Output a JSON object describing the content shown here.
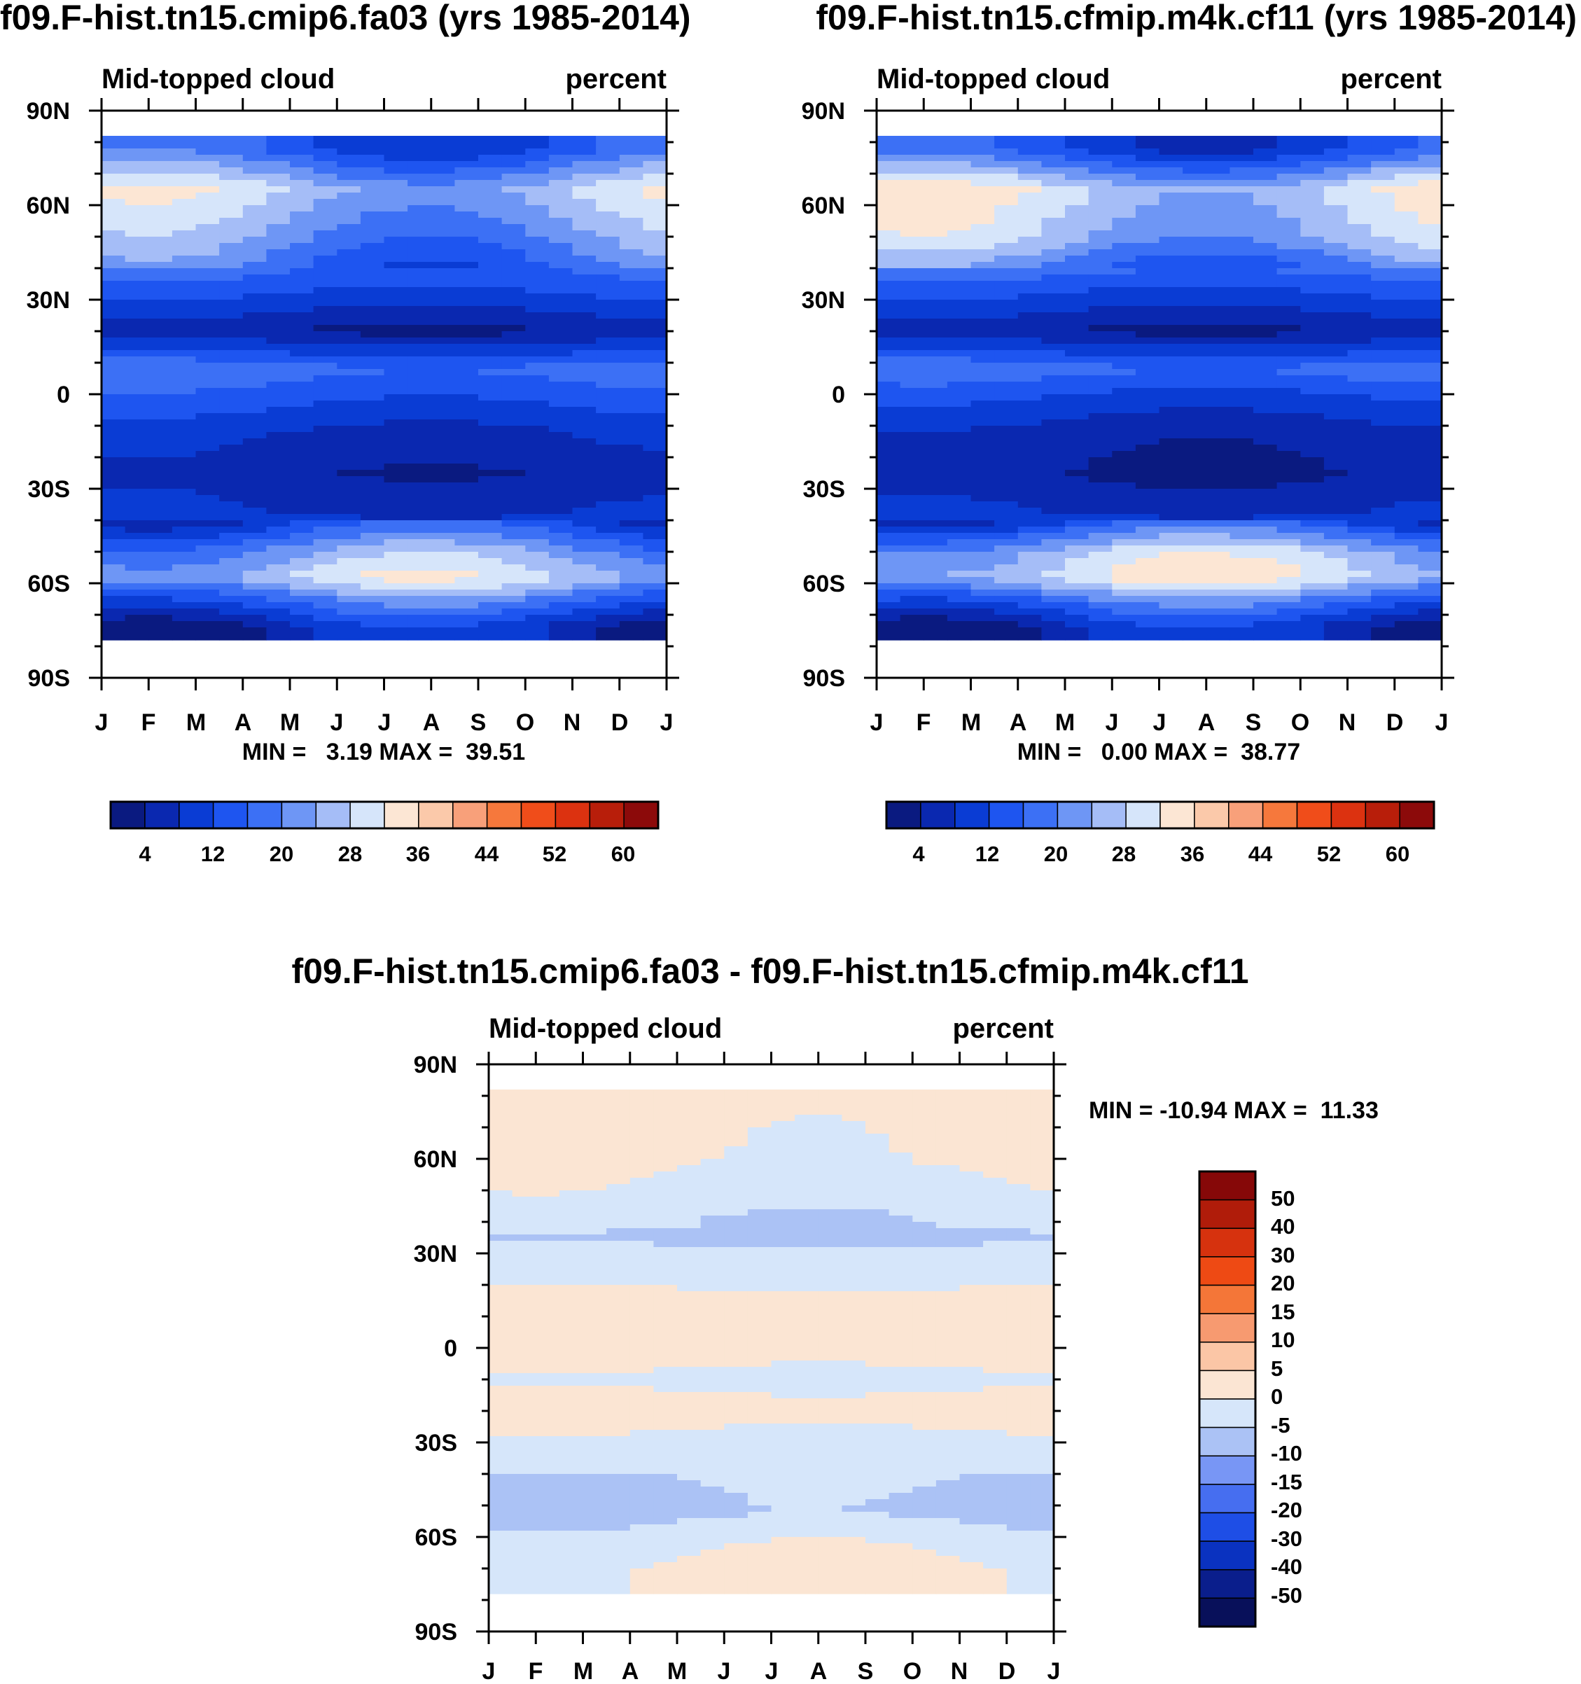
{
  "chart_data": [
    {
      "type": "heatmap",
      "title": "f09.F-hist.tn15.cmip6.fa03 (yrs 1985-2014)",
      "subtitle_left": "Mid-topped cloud",
      "subtitle_right": "percent",
      "x_ticks": [
        "J",
        "F",
        "M",
        "A",
        "M",
        "J",
        "J",
        "A",
        "S",
        "O",
        "N",
        "D",
        "J"
      ],
      "y_ticks": [
        "90N",
        "60N",
        "30N",
        "0",
        "30S",
        "60S",
        "90S"
      ],
      "ylim": [
        -90,
        90
      ],
      "stats": "MIN =   3.19 MAX =  39.51",
      "min": 3.19,
      "max": 39.51,
      "colorbar_labels": [
        "4",
        "12",
        "20",
        "28",
        "36",
        "44",
        "52",
        "60"
      ],
      "zonal_profile": [
        [
          78,
          14
        ],
        [
          65,
          28
        ],
        [
          50,
          22
        ],
        [
          35,
          14
        ],
        [
          20,
          4
        ],
        [
          8,
          18
        ],
        [
          0,
          14
        ],
        [
          -12,
          8
        ],
        [
          -25,
          5
        ],
        [
          -38,
          8
        ],
        [
          -50,
          22
        ],
        [
          -58,
          28
        ],
        [
          -66,
          16
        ],
        [
          -74,
          6
        ]
      ]
    },
    {
      "type": "heatmap",
      "title": "f09.F-hist.tn15.cfmip.m4k.cf11 (yrs 1985-2014)",
      "subtitle_left": "Mid-topped cloud",
      "subtitle_right": "percent",
      "x_ticks": [
        "J",
        "F",
        "M",
        "A",
        "M",
        "J",
        "J",
        "A",
        "S",
        "O",
        "N",
        "D",
        "J"
      ],
      "y_ticks": [
        "90N",
        "60N",
        "30N",
        "0",
        "30S",
        "60S",
        "90S"
      ],
      "ylim": [
        -90,
        90
      ],
      "stats": "MIN =   0.00 MAX =  38.77",
      "min": 0.0,
      "max": 38.77,
      "colorbar_labels": [
        "4",
        "12",
        "20",
        "28",
        "36",
        "44",
        "52",
        "60"
      ],
      "zonal_profile": [
        [
          78,
          12
        ],
        [
          65,
          30
        ],
        [
          50,
          26
        ],
        [
          35,
          14
        ],
        [
          20,
          4
        ],
        [
          8,
          18
        ],
        [
          0,
          12
        ],
        [
          -12,
          6
        ],
        [
          -25,
          4
        ],
        [
          -38,
          8
        ],
        [
          -50,
          26
        ],
        [
          -58,
          30
        ],
        [
          -66,
          16
        ],
        [
          -74,
          6
        ]
      ]
    },
    {
      "type": "heatmap",
      "title": "f09.F-hist.tn15.cmip6.fa03 - f09.F-hist.tn15.cfmip.m4k.cf11",
      "subtitle_left": "Mid-topped cloud",
      "subtitle_right": "percent",
      "x_ticks": [
        "J",
        "F",
        "M",
        "A",
        "M",
        "J",
        "J",
        "A",
        "S",
        "O",
        "N",
        "D",
        "J"
      ],
      "y_ticks": [
        "90N",
        "60N",
        "30N",
        "0",
        "30S",
        "60S",
        "90S"
      ],
      "ylim": [
        -90,
        90
      ],
      "stats": "MIN = -10.94 MAX =  11.33",
      "min": -10.94,
      "max": 11.33,
      "colorbar_labels": [
        "50",
        "40",
        "30",
        "20",
        "15",
        "10",
        "5",
        "0",
        "-5",
        "-10",
        "-15",
        "-20",
        "-30",
        "-40",
        "-50"
      ],
      "zonal_profile": [
        [
          75,
          2
        ],
        [
          60,
          1
        ],
        [
          45,
          -3
        ],
        [
          35,
          -6
        ],
        [
          25,
          -2
        ],
        [
          10,
          3
        ],
        [
          0,
          2
        ],
        [
          -10,
          -1
        ],
        [
          -20,
          2
        ],
        [
          -35,
          -3
        ],
        [
          -45,
          -6
        ],
        [
          -52,
          -7
        ],
        [
          -60,
          -2
        ],
        [
          -70,
          1
        ]
      ]
    }
  ],
  "colors": {
    "seq": [
      "#0a1a80",
      "#0a28b0",
      "#0a3cd4",
      "#1e55f0",
      "#3c70f5",
      "#6e96f5",
      "#a5bdf7",
      "#d6e5fa",
      "#fce6d4",
      "#fbc9aa",
      "#f8a07a",
      "#f6783c",
      "#f04d1a",
      "#dc3210",
      "#b81e0a",
      "#8c0a0a"
    ],
    "diff": [
      "#08105a",
      "#0a1e8c",
      "#0a32c0",
      "#1e4ee6",
      "#466ef0",
      "#7896f5",
      "#abc2f5",
      "#d6e6fa",
      "#fbe5d3",
      "#fbc6a6",
      "#f79a70",
      "#f47638",
      "#ee4a14",
      "#d6320e",
      "#b01c0a",
      "#860808"
    ]
  }
}
